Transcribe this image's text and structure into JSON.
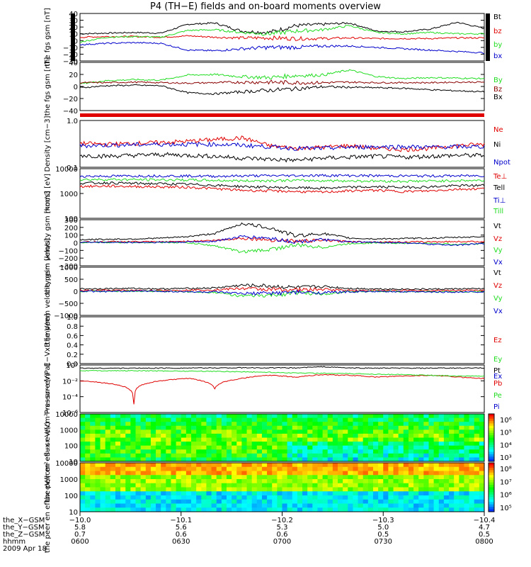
{
  "title": "P4 (TH−E) fields and on-board moments overview",
  "date_label": "2009 Apr 18",
  "colors": {
    "black": "#000000",
    "red": "#e00000",
    "green": "#22dd22",
    "blue": "#0000cc",
    "darkred": "#8b0000"
  },
  "time_axis": {
    "rows": [
      {
        "label": "the_X−GSM",
        "values": [
          "−10.0",
          "−10.1",
          "−10.2",
          "−10.3",
          "−10.4"
        ]
      },
      {
        "label": "the_Y−GSM",
        "values": [
          "5.8",
          "5.6",
          "5.3",
          "5.0",
          "4.7"
        ]
      },
      {
        "label": "the_Z−GSM",
        "values": [
          "0.7",
          "0.6",
          "0.6",
          "0.5",
          "0.5"
        ]
      },
      {
        "label": "hhmm",
        "values": [
          "0600",
          "0630",
          "0700",
          "0730",
          "0800"
        ]
      }
    ]
  },
  "chart_data": [
    {
      "type": "line",
      "ylabel": "the fgs gsm [nT]",
      "ylim": [
        -30,
        40
      ],
      "tick_labels": [
        "40",
        "30",
        "20",
        "10",
        "0",
        "−10",
        "−20",
        "−30"
      ],
      "series": [
        {
          "name": "Bt",
          "color": "#000000",
          "values": [
            10,
            11,
            12,
            11,
            24,
            26,
            14,
            12,
            22,
            24,
            26,
            14,
            13,
            17,
            27,
            18
          ]
        },
        {
          "name": "bz",
          "color": "#e00000",
          "values": [
            5,
            6,
            6,
            5,
            7,
            5,
            4,
            4,
            3,
            3,
            4,
            3,
            3,
            3,
            4,
            4
          ]
        },
        {
          "name": "by",
          "color": "#22dd22",
          "values": [
            -2,
            5,
            6,
            5,
            15,
            16,
            12,
            10,
            14,
            16,
            22,
            12,
            10,
            12,
            10,
            10
          ]
        },
        {
          "name": "bx",
          "color": "#0000cc",
          "values": [
            -6,
            -4,
            -3,
            -4,
            -14,
            -15,
            -12,
            -10,
            -10,
            -8,
            -8,
            -10,
            -12,
            -14,
            -16,
            -18
          ]
        }
      ]
    },
    {
      "type": "line",
      "ylabel": "the fgs gsm [nT]",
      "ylim": [
        -55,
        40
      ],
      "tick_labels": [
        "40",
        "20",
        "0",
        "−20",
        "−40"
      ],
      "series": [
        {
          "name": "By",
          "color": "#22dd22",
          "values": [
            -2,
            4,
            6,
            5,
            15,
            16,
            12,
            10,
            14,
            15,
            25,
            12,
            8,
            10,
            9,
            8
          ]
        },
        {
          "name": "Bz",
          "color": "#8b0000",
          "values": [
            0,
            0,
            1,
            0,
            -1,
            0,
            1,
            1,
            0,
            0,
            1,
            0,
            0,
            0,
            1,
            1
          ]
        },
        {
          "name": "Bx",
          "color": "#000000",
          "values": [
            -10,
            -6,
            -5,
            -6,
            -20,
            -22,
            -18,
            -15,
            -12,
            -8,
            -9,
            -10,
            -11,
            -14,
            -16,
            -18
          ]
        }
      ]
    },
    {
      "type": "line",
      "ylabel": "Density [cm−3]",
      "ylim": [
        0.1,
        1.5
      ],
      "tick_labels": [
        "1.0",
        "0.1"
      ],
      "series": [
        {
          "name": "Ne",
          "color": "#e00000",
          "values": [
            0.4,
            0.38,
            0.4,
            0.42,
            0.45,
            0.5,
            0.55,
            0.35,
            0.3,
            0.32,
            0.35,
            0.3,
            0.28,
            0.3,
            0.35,
            0.38
          ]
        },
        {
          "name": "Ni",
          "color": "#000000",
          "values": [
            0.2,
            0.19,
            0.2,
            0.21,
            0.2,
            0.19,
            0.17,
            0.16,
            0.15,
            0.17,
            0.18,
            0.19,
            0.18,
            0.19,
            0.2,
            0.2
          ]
        },
        {
          "name": "Npot",
          "color": "#0000cc",
          "values": [
            0.35,
            0.36,
            0.37,
            0.38,
            0.38,
            0.38,
            0.36,
            0.33,
            0.3,
            0.3,
            0.32,
            0.33,
            0.33,
            0.32,
            0.33,
            0.33
          ]
        }
      ]
    },
    {
      "type": "line",
      "ylabel": "mom3 [eV]",
      "ylim": [
        100,
        15000
      ],
      "tick_labels": [
        "10000",
        "1000",
        "100"
      ],
      "series": [
        {
          "name": "Te⊥",
          "color": "#e00000",
          "values": [
            2500,
            2600,
            2500,
            2400,
            2300,
            2000,
            1700,
            1600,
            1500,
            1400,
            1600,
            1700,
            1500,
            1600,
            1900,
            2000
          ]
        },
        {
          "name": "Tell",
          "color": "#000000",
          "values": [
            3500,
            3600,
            3400,
            3300,
            3100,
            2800,
            2500,
            2300,
            2200,
            2100,
            2300,
            2400,
            2300,
            2400,
            2700,
            2800
          ]
        },
        {
          "name": "Ti⊥",
          "color": "#0000cc",
          "values": [
            7000,
            7100,
            7200,
            7300,
            7200,
            7000,
            7300,
            7400,
            7500,
            7600,
            7500,
            7400,
            7300,
            7200,
            7300,
            7400
          ]
        },
        {
          "name": "Till",
          "color": "#22dd22",
          "values": [
            5000,
            5100,
            5000,
            4900,
            4800,
            4600,
            4400,
            4500,
            4600,
            4500,
            4400,
            4300,
            4200,
            4300,
            4500,
            4600
          ]
        }
      ]
    },
    {
      "type": "line",
      "ylabel": "the peim velocity gsm [km/s]",
      "ylim": [
        -300,
        300
      ],
      "tick_labels": [
        "300",
        "200",
        "100",
        "0",
        "−100",
        "−200",
        "−300"
      ],
      "series": [
        {
          "name": "Vt",
          "color": "#000000",
          "values": [
            40,
            45,
            50,
            60,
            80,
            120,
            250,
            200,
            90,
            120,
            60,
            50,
            55,
            60,
            70,
            80
          ]
        },
        {
          "name": "Vz",
          "color": "#e00000",
          "values": [
            10,
            12,
            15,
            10,
            20,
            30,
            60,
            40,
            20,
            30,
            15,
            10,
            10,
            12,
            15,
            15
          ]
        },
        {
          "name": "Vy",
          "color": "#22dd22",
          "values": [
            0,
            5,
            3,
            5,
            0,
            -40,
            -120,
            -90,
            -30,
            -60,
            -10,
            0,
            -5,
            -10,
            -20,
            -10
          ]
        },
        {
          "name": "Vx",
          "color": "#0000cc",
          "values": [
            5,
            6,
            4,
            6,
            10,
            20,
            80,
            60,
            10,
            40,
            10,
            5,
            0,
            -20,
            -30,
            -10
          ]
        }
      ]
    },
    {
      "type": "line",
      "ylabel": "the peem velocity gsm [km/s]",
      "ylim": [
        -1000,
        1000
      ],
      "tick_labels": [
        "1000",
        "500",
        "0",
        "−500",
        "−1000"
      ],
      "series": [
        {
          "name": "Vt",
          "color": "#000000",
          "values": [
            100,
            110,
            120,
            100,
            120,
            140,
            250,
            220,
            150,
            200,
            120,
            100,
            90,
            90,
            100,
            110
          ]
        },
        {
          "name": "Vz",
          "color": "#e00000",
          "values": [
            30,
            40,
            40,
            30,
            50,
            60,
            120,
            80,
            60,
            80,
            40,
            30,
            30,
            30,
            40,
            40
          ]
        },
        {
          "name": "Vy",
          "color": "#22dd22",
          "values": [
            0,
            10,
            5,
            0,
            -20,
            -40,
            -200,
            -180,
            -60,
            -100,
            -20,
            0,
            -10,
            -20,
            -20,
            -10
          ]
        },
        {
          "name": "Vx",
          "color": "#0000cc",
          "values": [
            0,
            -10,
            10,
            0,
            -20,
            -30,
            -100,
            -80,
            -40,
            -60,
            -20,
            -10,
            -20,
            -30,
            -30,
            -20
          ]
        }
      ]
    },
    {
      "type": "line",
      "ylabel": "E−VxB [mV/m]",
      "ylim": [
        0,
        1
      ],
      "tick_labels": [
        "1.0",
        "0.8",
        "0.6",
        "0.4",
        "0.2",
        "0.0"
      ],
      "series": [
        {
          "name": "Ez",
          "color": "#e00000",
          "values": []
        },
        {
          "name": "Ey",
          "color": "#22dd22",
          "values": []
        },
        {
          "name": "Ex",
          "color": "#0000cc",
          "values": []
        }
      ]
    },
    {
      "type": "line",
      "ylabel": "Pressure [nPa]",
      "ylim": [
        1e-06,
        1
      ],
      "tick_labels": [
        "10⁰",
        "10⁻²",
        "10⁻⁴",
        "10⁻⁶"
      ],
      "series": [
        {
          "name": "Pt",
          "color": "#000000",
          "values": [
            0.4,
            0.4,
            0.4,
            0.41,
            0.42,
            0.43,
            0.45,
            0.44,
            0.43,
            0.6,
            0.42,
            0.41,
            0.4,
            0.4,
            0.41,
            0.42
          ]
        },
        {
          "name": "Pb",
          "color": "#e00000",
          "values": [
            0.01,
            0.005,
            1e-05,
            0.01,
            0.02,
            0.001,
            0.02,
            0.05,
            0.03,
            0.06,
            0.05,
            0.03,
            0.04,
            0.05,
            0.03,
            0.02
          ]
        },
        {
          "name": "Pe",
          "color": "#22dd22",
          "values": [
            0.2,
            0.19,
            0.19,
            0.18,
            0.17,
            0.16,
            0.14,
            0.12,
            0.1,
            0.09,
            0.08,
            0.07,
            0.06,
            0.05,
            0.04,
            0.04
          ]
        },
        {
          "name": "Pi",
          "color": "#0000cc",
          "values": []
        }
      ]
    },
    {
      "type": "heatmap",
      "ylabel": "the peir en eflux eV/(cm²−s−sr−eV)",
      "tick_labels": [
        "10000",
        "1000",
        "100",
        "10"
      ],
      "colorbar_labels": [
        "10⁶",
        "10⁵",
        "10⁴",
        "10³"
      ]
    },
    {
      "type": "heatmap",
      "ylabel": "the peer en eflux eV/(cm²−s−sr−eV)",
      "tick_labels": [
        "10000",
        "1000",
        "100",
        "10"
      ],
      "colorbar_labels": [
        "10⁸",
        "10⁷",
        "10⁶",
        "10⁵"
      ]
    }
  ]
}
